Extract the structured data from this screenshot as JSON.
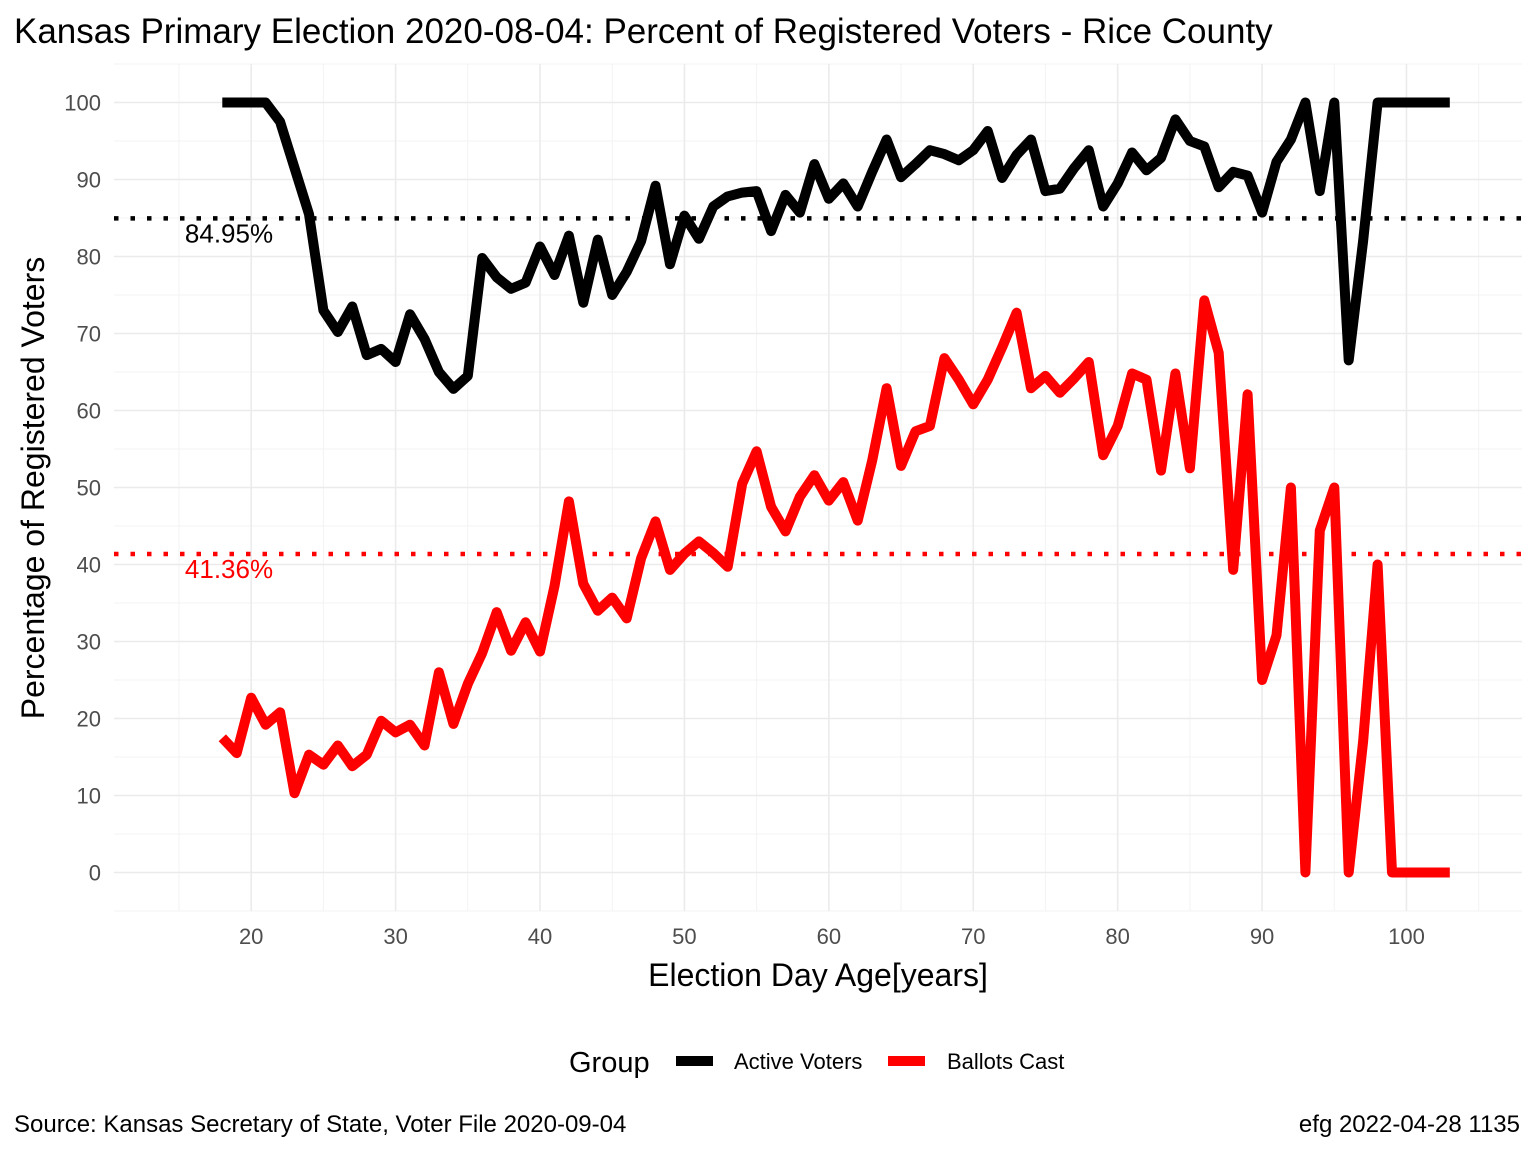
{
  "chart_data": {
    "type": "line",
    "title": "Kansas Primary Election 2020-08-04:  Percent of Registered Voters - Rice County",
    "xlabel": "Election Day Age[years]",
    "ylabel": "Percentage of Registered Voters",
    "xlim": [
      10.5,
      108
    ],
    "ylim": [
      -5,
      105
    ],
    "x_ticks": [
      20,
      30,
      40,
      50,
      60,
      70,
      80,
      90,
      100
    ],
    "y_ticks": [
      0,
      10,
      20,
      30,
      40,
      50,
      60,
      70,
      80,
      90,
      100
    ],
    "grid": true,
    "legend": {
      "title": "Group",
      "position": "bottom"
    },
    "x": [
      18,
      19,
      20,
      21,
      22,
      23,
      24,
      25,
      26,
      27,
      28,
      29,
      30,
      31,
      32,
      33,
      34,
      35,
      36,
      37,
      38,
      39,
      40,
      41,
      42,
      43,
      44,
      45,
      46,
      47,
      48,
      49,
      50,
      51,
      52,
      53,
      54,
      55,
      56,
      57,
      58,
      59,
      60,
      61,
      62,
      63,
      64,
      65,
      66,
      67,
      68,
      69,
      70,
      71,
      72,
      73,
      74,
      75,
      76,
      77,
      78,
      79,
      80,
      81,
      82,
      83,
      84,
      85,
      86,
      87,
      88,
      89,
      90,
      91,
      92,
      93,
      94,
      95,
      96,
      97,
      98,
      99,
      100,
      101,
      102,
      103
    ],
    "series": [
      {
        "name": "Active Voters",
        "color": "#000000",
        "values": [
          100,
          100,
          100,
          100,
          97.5,
          91.5,
          85.5,
          73,
          70.2,
          73.5,
          67.2,
          68,
          66.3,
          72.5,
          69.3,
          65,
          62.8,
          64.5,
          79.8,
          77.3,
          75.8,
          76.6,
          81.3,
          77.6,
          82.7,
          74,
          82.2,
          75,
          78,
          82,
          89.2,
          79,
          85.3,
          82.3,
          86.5,
          87.8,
          88.3,
          88.5,
          83.3,
          88,
          85.7,
          92,
          87.5,
          89.5,
          86.5,
          91,
          95.2,
          90.3,
          92,
          93.8,
          93.3,
          92.5,
          93.8,
          96.3,
          90.2,
          93.2,
          95.2,
          88.5,
          88.8,
          91.5,
          93.8,
          86.5,
          89.5,
          93.5,
          91.2,
          92.8,
          97.8,
          95,
          94.3,
          89,
          91,
          90.5,
          85.7,
          92.3,
          95.2,
          100,
          88.5,
          100,
          66.5,
          82,
          100,
          100,
          100,
          100,
          100,
          100
        ]
      },
      {
        "name": "Ballots Cast",
        "color": "#ff0000",
        "values": [
          17.5,
          15.5,
          22.7,
          19.2,
          20.8,
          10.3,
          15.3,
          14,
          16.5,
          13.8,
          15.3,
          19.7,
          18.2,
          19.2,
          16.5,
          26,
          19.3,
          24.5,
          28.5,
          33.8,
          28.8,
          32.5,
          28.7,
          37.2,
          48.2,
          37.5,
          34,
          35.7,
          33,
          40.8,
          45.6,
          39.3,
          41.4,
          43,
          41.5,
          39.7,
          50.5,
          54.7,
          47.5,
          44.3,
          48.8,
          51.6,
          48.3,
          50.7,
          45.7,
          53.5,
          62.9,
          52.8,
          57.3,
          58,
          66.8,
          64,
          60.8,
          64,
          68.2,
          72.7,
          62.9,
          64.5,
          62.3,
          64.2,
          66.3,
          54.2,
          58,
          64.8,
          64,
          52.2,
          64.8,
          52.5,
          74.3,
          67.5,
          39.3,
          62.1,
          25,
          30.8,
          50,
          0,
          44.4,
          50,
          0,
          17,
          40,
          0,
          0,
          0,
          0,
          0
        ]
      }
    ],
    "reference_lines": [
      {
        "series": "Active Voters",
        "value": 84.95,
        "label": "84.95%",
        "color": "#000000",
        "style": "dotted"
      },
      {
        "series": "Ballots Cast",
        "value": 41.36,
        "label": "41.36%",
        "color": "#ff0000",
        "style": "dotted"
      }
    ]
  },
  "caption": {
    "source": "Source:  Kansas Secretary of State, Voter File  2020-09-04",
    "credit": "efg 2022-04-28 1135"
  }
}
